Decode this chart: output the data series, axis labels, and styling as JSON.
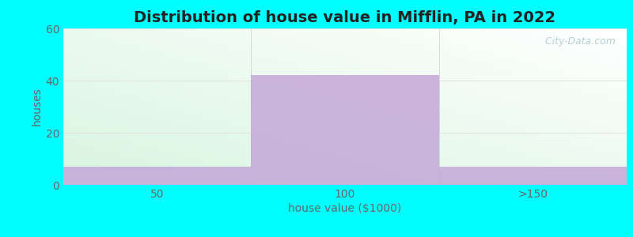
{
  "title": "Distribution of house value in Mifflin, PA in 2022",
  "xlabel": "house value ($1000)",
  "ylabel": "houses",
  "categories": [
    "50",
    "100",
    ">150"
  ],
  "values": [
    7,
    42,
    7
  ],
  "bar_color": "#c4a8d8",
  "ylim": [
    0,
    60
  ],
  "yticks": [
    0,
    20,
    40,
    60
  ],
  "background_outer": "#00ffff",
  "background_top": "#f5fbff",
  "background_bottom_left": "#d8f5e0",
  "background_bottom_right": "#e8f8ee",
  "watermark": "  City-Data.com",
  "title_fontsize": 14,
  "label_fontsize": 10,
  "tick_fontsize": 10
}
